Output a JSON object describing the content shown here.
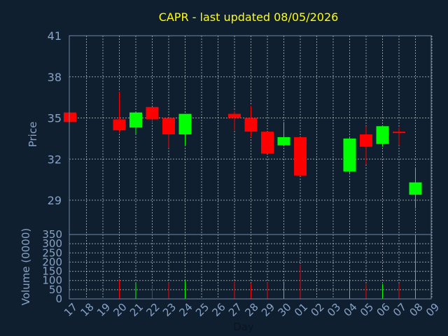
{
  "chart_data": [
    {
      "type": "candlestick",
      "title": "CAPR - last updated 08/05/2026",
      "ylabel": "Price",
      "ylim": [
        26.5,
        41
      ],
      "yticks": [
        29,
        32,
        35,
        38,
        41
      ],
      "grid": true,
      "up_color": "#00ff00",
      "down_color": "#ff0000",
      "x": [
        "17",
        "18",
        "19",
        "20",
        "21",
        "22",
        "23",
        "24",
        "25",
        "26",
        "27",
        "28",
        "29",
        "30",
        "01",
        "02",
        "03",
        "04",
        "05",
        "06",
        "07",
        "08",
        "09"
      ],
      "candles": [
        {
          "x": "17",
          "open": 35.4,
          "high": 35.4,
          "low": 34.7,
          "close": 34.7
        },
        {
          "x": "20",
          "open": 34.9,
          "high": 36.9,
          "low": 33.9,
          "close": 34.1
        },
        {
          "x": "21",
          "open": 34.3,
          "high": 35.4,
          "low": 33.8,
          "close": 35.4
        },
        {
          "x": "22",
          "open": 35.8,
          "high": 35.8,
          "low": 34.6,
          "close": 34.9
        },
        {
          "x": "23",
          "open": 35.0,
          "high": 35.0,
          "low": 32.8,
          "close": 33.8
        },
        {
          "x": "24",
          "open": 33.8,
          "high": 35.3,
          "low": 33.0,
          "close": 35.3
        },
        {
          "x": "27",
          "open": 35.3,
          "high": 35.5,
          "low": 34.1,
          "close": 35.0
        },
        {
          "x": "28",
          "open": 35.0,
          "high": 35.9,
          "low": 33.6,
          "close": 34.0
        },
        {
          "x": "29",
          "open": 34.0,
          "high": 34.0,
          "low": 32.4,
          "close": 32.4
        },
        {
          "x": "30",
          "open": 33.0,
          "high": 34.7,
          "low": 33.0,
          "close": 33.6
        },
        {
          "x": "01",
          "open": 33.6,
          "high": 33.6,
          "low": 30.8,
          "close": 30.8
        },
        {
          "x": "04",
          "open": 31.1,
          "high": 33.6,
          "low": 31.0,
          "close": 33.5
        },
        {
          "x": "05",
          "open": 33.8,
          "high": 34.4,
          "low": 31.6,
          "close": 32.9
        },
        {
          "x": "06",
          "open": 33.1,
          "high": 34.4,
          "low": 32.9,
          "close": 34.4
        },
        {
          "x": "07",
          "open": 34.0,
          "high": 34.3,
          "low": 33.0,
          "close": 33.9
        },
        {
          "x": "08",
          "open": 29.4,
          "high": 31.3,
          "low": 28.4,
          "close": 30.3
        }
      ]
    },
    {
      "type": "bar",
      "ylabel": "Volume (0000)",
      "xlabel": "Day",
      "ylim": [
        0,
        350
      ],
      "yticks": [
        0,
        50,
        100,
        150,
        200,
        250,
        300,
        350
      ],
      "grid": true,
      "categories": [
        "17",
        "18",
        "19",
        "20",
        "21",
        "22",
        "23",
        "24",
        "25",
        "26",
        "27",
        "28",
        "29",
        "30",
        "01",
        "02",
        "03",
        "04",
        "05",
        "06",
        "07",
        "08",
        "09"
      ],
      "bars": [
        {
          "x": "17",
          "value": 0,
          "color": "#ff0000"
        },
        {
          "x": "20",
          "value": 105,
          "color": "#ff0000"
        },
        {
          "x": "21",
          "value": 85,
          "color": "#00ff00"
        },
        {
          "x": "22",
          "value": 75,
          "color": "#ff0000"
        },
        {
          "x": "23",
          "value": 90,
          "color": "#ff0000"
        },
        {
          "x": "24",
          "value": 100,
          "color": "#00ff00"
        },
        {
          "x": "27",
          "value": 95,
          "color": "#ff0000"
        },
        {
          "x": "28",
          "value": 85,
          "color": "#ff0000"
        },
        {
          "x": "29",
          "value": 90,
          "color": "#ff0000"
        },
        {
          "x": "30",
          "value": 95,
          "color": "#00ff00"
        },
        {
          "x": "01",
          "value": 185,
          "color": "#ff0000"
        },
        {
          "x": "04",
          "value": 100,
          "color": "#00ff00"
        },
        {
          "x": "05",
          "value": 80,
          "color": "#ff0000"
        },
        {
          "x": "06",
          "value": 80,
          "color": "#00ff00"
        },
        {
          "x": "07",
          "value": 85,
          "color": "#ff0000"
        },
        {
          "x": "08",
          "value": 350,
          "color": "#00ff00"
        }
      ]
    }
  ]
}
